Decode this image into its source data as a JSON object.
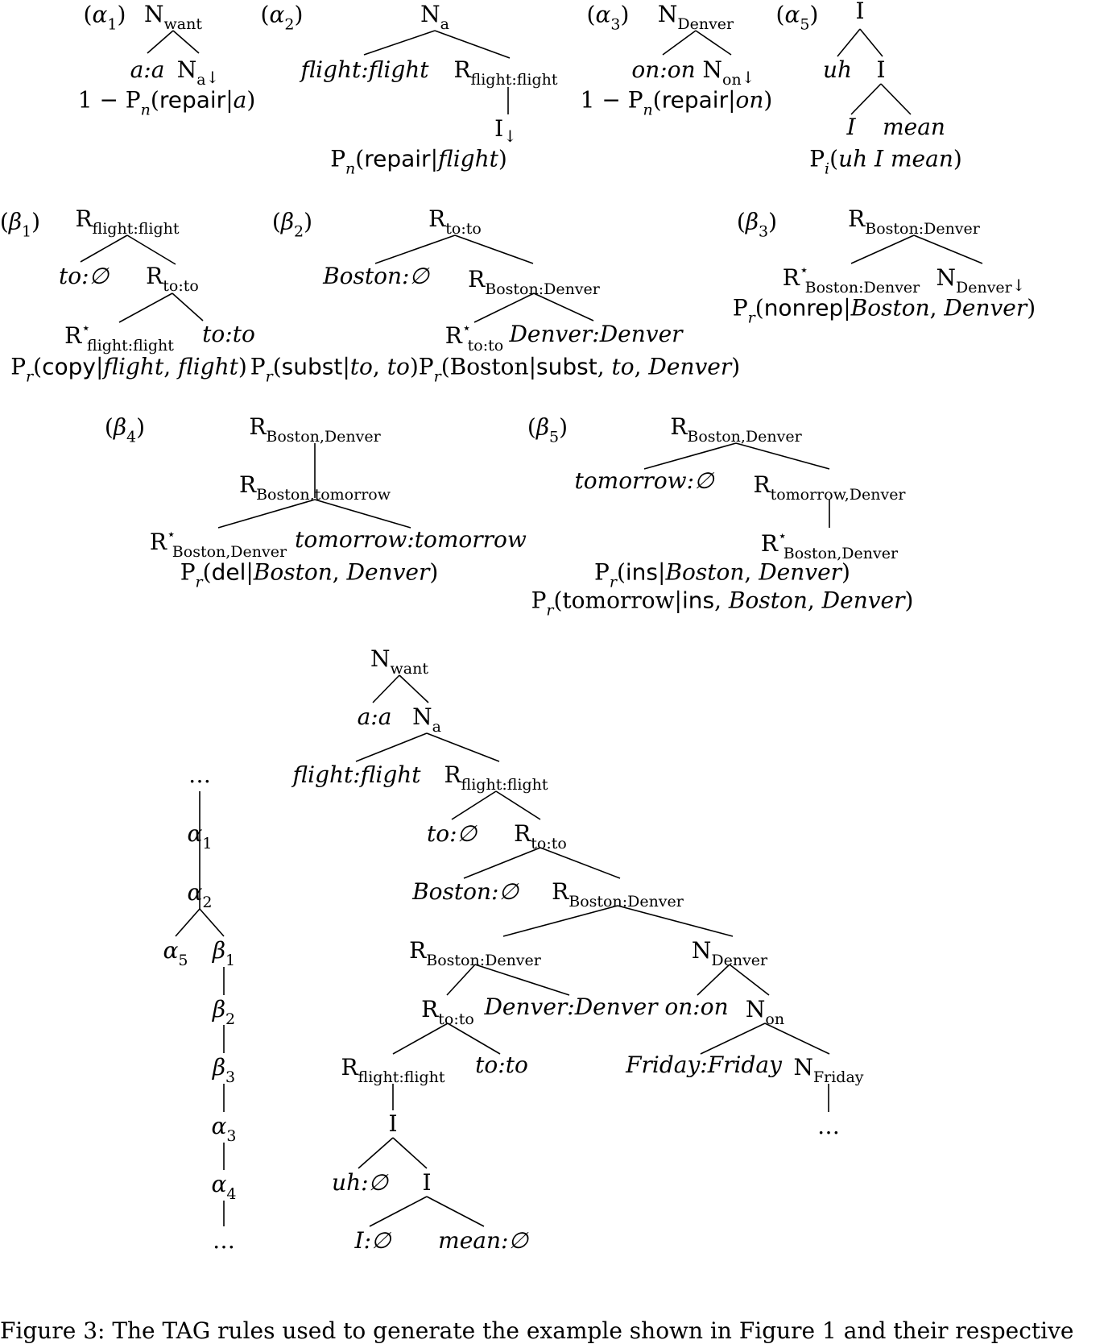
{
  "caption": "Figure 3: The TAG rules used to generate the example shown in Figure 1 and their respective",
  "trees": [
    {
      "id": "alpha1",
      "label": "(α1)",
      "nodes": [
        {
          "k": "n0",
          "b": "N",
          "s": "want"
        },
        {
          "k": "n1",
          "t": "a:a",
          "it": true
        },
        {
          "k": "n2",
          "b": "N",
          "s": "a",
          "down": true
        }
      ],
      "edges": [
        [
          "n0",
          "n1"
        ],
        [
          "n0",
          "n2"
        ]
      ],
      "probs": [
        "1 − Pn(repair|a)"
      ]
    },
    {
      "id": "alpha2",
      "label": "(α2)",
      "nodes": [
        {
          "k": "n0",
          "b": "N",
          "s": "a"
        },
        {
          "k": "n1",
          "t": "flight:flight",
          "it": true
        },
        {
          "k": "n2",
          "b": "R",
          "s": "flight:flight"
        },
        {
          "k": "n3",
          "b": "I",
          "down": true
        }
      ],
      "edges": [
        [
          "n0",
          "n1"
        ],
        [
          "n0",
          "n2"
        ],
        [
          "n2",
          "n3"
        ]
      ],
      "probs": [
        "Pn(repair|flight)"
      ]
    },
    {
      "id": "alpha3",
      "label": "(α3)",
      "nodes": [
        {
          "k": "n0",
          "b": "N",
          "s": "Denver"
        },
        {
          "k": "n1",
          "t": "on:on",
          "it": true
        },
        {
          "k": "n2",
          "b": "N",
          "s": "on",
          "down": true
        }
      ],
      "edges": [
        [
          "n0",
          "n1"
        ],
        [
          "n0",
          "n2"
        ]
      ],
      "probs": [
        "1 − Pn(repair|on)"
      ]
    },
    {
      "id": "alpha5",
      "label": "(α5)",
      "nodes": [
        {
          "k": "n0",
          "b": "I"
        },
        {
          "k": "n1",
          "t": "uh",
          "it": true
        },
        {
          "k": "n2",
          "b": "I"
        },
        {
          "k": "n3",
          "t": "I",
          "it": true
        },
        {
          "k": "n4",
          "t": "mean",
          "it": true
        }
      ],
      "edges": [
        [
          "n0",
          "n1"
        ],
        [
          "n0",
          "n2"
        ],
        [
          "n2",
          "n3"
        ],
        [
          "n2",
          "n4"
        ]
      ],
      "probs": [
        "Pi(uh I mean)"
      ]
    },
    {
      "id": "beta1",
      "label": "(β1)",
      "nodes": [
        {
          "k": "n0",
          "b": "R",
          "s": "flight:flight"
        },
        {
          "k": "n1",
          "t": "to:∅",
          "it": true
        },
        {
          "k": "n2",
          "b": "R",
          "s": "to:to"
        },
        {
          "k": "n3",
          "b": "R",
          "s": "flight:flight",
          "star": true
        },
        {
          "k": "n4",
          "t": "to:to",
          "it": true
        }
      ],
      "edges": [
        [
          "n0",
          "n1"
        ],
        [
          "n0",
          "n2"
        ],
        [
          "n2",
          "n3"
        ],
        [
          "n2",
          "n4"
        ]
      ],
      "probs": [
        "Pr(copy|flight, flight)"
      ]
    },
    {
      "id": "beta2",
      "label": "(β2)",
      "nodes": [
        {
          "k": "n0",
          "b": "R",
          "s": "to:to"
        },
        {
          "k": "n1",
          "t": "Boston:∅",
          "it": true
        },
        {
          "k": "n2",
          "b": "R",
          "s": "Boston:Denver"
        },
        {
          "k": "n3",
          "b": "R",
          "s": "to:to",
          "star": true
        },
        {
          "k": "n4",
          "t": "Denver:Denver",
          "it": true
        }
      ],
      "edges": [
        [
          "n0",
          "n1"
        ],
        [
          "n0",
          "n2"
        ],
        [
          "n2",
          "n3"
        ],
        [
          "n2",
          "n4"
        ]
      ],
      "probs": [
        "Pr(subst|to, to)Pr(Boston|subst, to, Denver)"
      ]
    },
    {
      "id": "beta3",
      "label": "(β3)",
      "nodes": [
        {
          "k": "n0",
          "b": "R",
          "s": "Boston:Denver"
        },
        {
          "k": "n1",
          "b": "R",
          "s": "Boston:Denver",
          "star": true
        },
        {
          "k": "n2",
          "b": "N",
          "s": "Denver",
          "down": true
        }
      ],
      "edges": [
        [
          "n0",
          "n1"
        ],
        [
          "n0",
          "n2"
        ]
      ],
      "probs": [
        "Pr(nonrep|Boston, Denver)"
      ]
    },
    {
      "id": "beta4",
      "label": "(β4)",
      "nodes": [
        {
          "k": "n0",
          "b": "R",
          "s": "Boston,Denver"
        },
        {
          "k": "n1",
          "b": "R",
          "s": "Boston,tomorrow"
        },
        {
          "k": "n2",
          "b": "R",
          "s": "Boston,Denver",
          "star": true
        },
        {
          "k": "n3",
          "t": "tomorrow:tomorrow",
          "it": true
        }
      ],
      "edges": [
        [
          "n0",
          "n1"
        ],
        [
          "n1",
          "n2"
        ],
        [
          "n1",
          "n3"
        ]
      ],
      "probs": [
        "Pr(del|Boston, Denver)"
      ]
    },
    {
      "id": "beta5",
      "label": "(β5)",
      "nodes": [
        {
          "k": "n0",
          "b": "R",
          "s": "Boston,Denver"
        },
        {
          "k": "n1",
          "t": "tomorrow:∅",
          "it": true
        },
        {
          "k": "n2",
          "b": "R",
          "s": "tomorrow,Denver"
        },
        {
          "k": "n3",
          "b": "R",
          "s": "Boston,Denver",
          "star": true
        }
      ],
      "edges": [
        [
          "n0",
          "n1"
        ],
        [
          "n0",
          "n2"
        ],
        [
          "n2",
          "n3"
        ]
      ],
      "probs": [
        "Pr(ins|Boston, Denver)",
        "Pr(tomorrow|ins, Boston, Denver)"
      ]
    },
    {
      "id": "derivation",
      "label": "",
      "nodes": [
        {
          "k": "d0",
          "t": "…"
        },
        {
          "k": "d1",
          "b": "α",
          "s": "1",
          "math": true
        },
        {
          "k": "d2",
          "b": "α",
          "s": "2",
          "math": true
        },
        {
          "k": "d3",
          "b": "α",
          "s": "5",
          "math": true
        },
        {
          "k": "d4",
          "b": "β",
          "s": "1",
          "math": true
        },
        {
          "k": "d5",
          "b": "β",
          "s": "2",
          "math": true
        },
        {
          "k": "d6",
          "b": "β",
          "s": "3",
          "math": true
        },
        {
          "k": "d7",
          "b": "α",
          "s": "3",
          "math": true
        },
        {
          "k": "d8",
          "b": "α",
          "s": "4",
          "math": true
        },
        {
          "k": "d9",
          "t": "…"
        }
      ],
      "edges": [
        [
          "d0",
          "d1"
        ],
        [
          "d1",
          "d2"
        ],
        [
          "d2",
          "d3"
        ],
        [
          "d2",
          "d4"
        ],
        [
          "d4",
          "d5"
        ],
        [
          "d5",
          "d6"
        ],
        [
          "d6",
          "d7"
        ],
        [
          "d7",
          "d8"
        ],
        [
          "d8",
          "d9"
        ]
      ],
      "probs": []
    },
    {
      "id": "derived",
      "label": "",
      "nodes": [
        {
          "k": "e0",
          "b": "N",
          "s": "want"
        },
        {
          "k": "e1",
          "t": "a:a",
          "it": true
        },
        {
          "k": "e2",
          "b": "N",
          "s": "a"
        },
        {
          "k": "e3",
          "t": "flight:flight",
          "it": true
        },
        {
          "k": "e4",
          "b": "R",
          "s": "flight:flight"
        },
        {
          "k": "e5",
          "t": "to:∅",
          "it": true
        },
        {
          "k": "e6",
          "b": "R",
          "s": "to:to"
        },
        {
          "k": "e7",
          "t": "Boston:∅",
          "it": true
        },
        {
          "k": "e8",
          "b": "R",
          "s": "Boston:Denver"
        },
        {
          "k": "e9",
          "b": "R",
          "s": "Boston:Denver"
        },
        {
          "k": "e10",
          "b": "N",
          "s": "Denver"
        },
        {
          "k": "e11",
          "b": "R",
          "s": "to:to"
        },
        {
          "k": "e12",
          "t": "Denver:Denver",
          "it": true
        },
        {
          "k": "e13",
          "t": "on:on",
          "it": true
        },
        {
          "k": "e14",
          "b": "N",
          "s": "on"
        },
        {
          "k": "e15",
          "b": "R",
          "s": "flight:flight"
        },
        {
          "k": "e16",
          "t": "to:to",
          "it": true
        },
        {
          "k": "e17",
          "t": "Friday:Friday",
          "it": true
        },
        {
          "k": "e18",
          "b": "N",
          "s": "Friday"
        },
        {
          "k": "e19",
          "b": "I"
        },
        {
          "k": "e20",
          "t": "…"
        },
        {
          "k": "e21",
          "t": "uh:∅",
          "it": true
        },
        {
          "k": "e22",
          "b": "I"
        },
        {
          "k": "e23",
          "t": "I:∅",
          "it": true
        },
        {
          "k": "e24",
          "t": "mean:∅",
          "it": true
        }
      ],
      "edges": [
        [
          "e0",
          "e1"
        ],
        [
          "e0",
          "e2"
        ],
        [
          "e2",
          "e3"
        ],
        [
          "e2",
          "e4"
        ],
        [
          "e4",
          "e5"
        ],
        [
          "e4",
          "e6"
        ],
        [
          "e6",
          "e7"
        ],
        [
          "e6",
          "e8"
        ],
        [
          "e8",
          "e9"
        ],
        [
          "e8",
          "e10"
        ],
        [
          "e9",
          "e11"
        ],
        [
          "e9",
          "e12"
        ],
        [
          "e10",
          "e13"
        ],
        [
          "e10",
          "e14"
        ],
        [
          "e11",
          "e15"
        ],
        [
          "e11",
          "e16"
        ],
        [
          "e14",
          "e17"
        ],
        [
          "e14",
          "e18"
        ],
        [
          "e15",
          "e19"
        ],
        [
          "e18",
          "e20"
        ],
        [
          "e19",
          "e21"
        ],
        [
          "e19",
          "e22"
        ],
        [
          "e22",
          "e23"
        ],
        [
          "e22",
          "e24"
        ]
      ],
      "probs": []
    }
  ]
}
